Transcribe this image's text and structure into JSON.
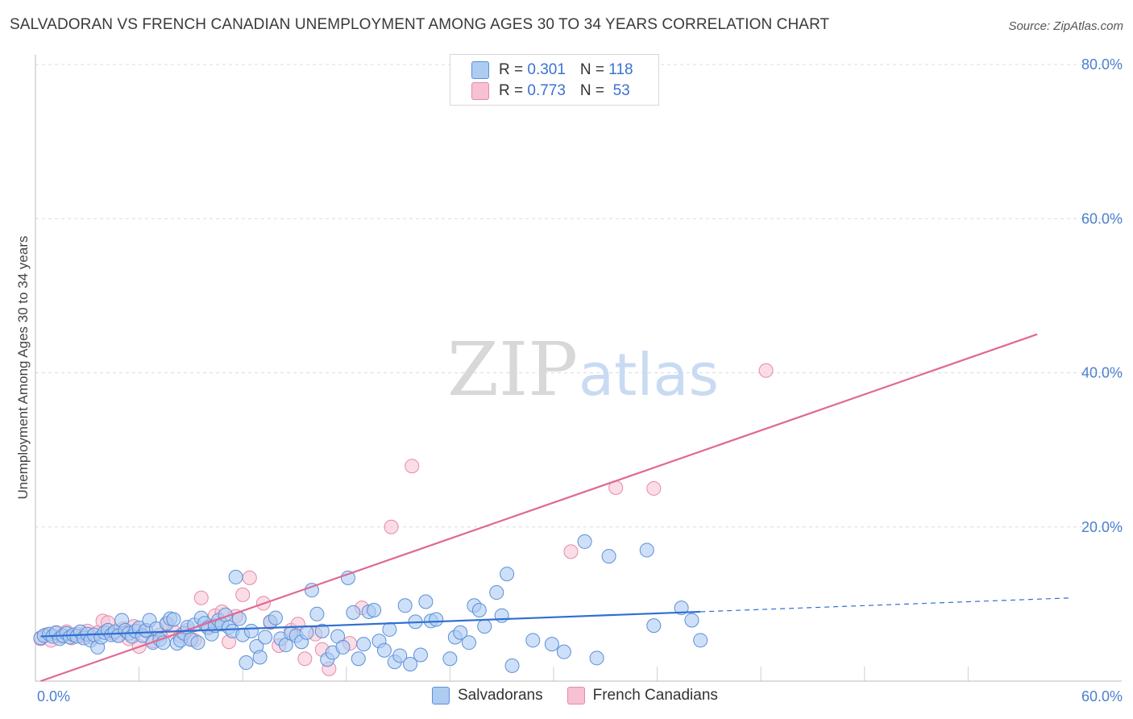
{
  "title": "SALVADORAN VS FRENCH CANADIAN UNEMPLOYMENT AMONG AGES 30 TO 34 YEARS CORRELATION CHART",
  "source": "Source: ZipAtlas.com",
  "watermark": {
    "zip": "ZIP",
    "atlas": "atlas"
  },
  "legend": {
    "rows": [
      {
        "r_label": "R = ",
        "r_value": "0.301",
        "n_label": "N = ",
        "n_value": "118"
      },
      {
        "r_label": "R = ",
        "r_value": "0.773",
        "n_label": "N = ",
        "n_value": " 53"
      }
    ]
  },
  "bottom_legend": [
    "Salvadorans",
    "French Canadians"
  ],
  "colors": {
    "blue_fill": "#aecbf2",
    "blue_stroke": "#5b8fd9",
    "blue_line": "#2f6fd0",
    "pink_fill": "#f7c1d2",
    "pink_stroke": "#e58aa8",
    "pink_line": "#e06893",
    "tick_text": "#4a7fd0",
    "grid": "#dcdcdc"
  },
  "chart_data": {
    "type": "scatter",
    "xlabel": "",
    "ylabel": "Unemployment Among Ages 30 to 34 years",
    "xlim": [
      0,
      60
    ],
    "ylim": [
      0,
      80
    ],
    "x_tick_labels": [
      "0.0%",
      "60.0%"
    ],
    "y_ticks": [
      20,
      40,
      60,
      80
    ],
    "y_tick_labels": [
      "20.0%",
      "40.0%",
      "60.0%",
      "80.0%"
    ],
    "grid": true,
    "legend_position": "top-center",
    "series": [
      {
        "name": "Salvadorans",
        "trend": {
          "x": [
            0.3,
            38.5
          ],
          "y": [
            5.8,
            9.0
          ],
          "extrapolated_to": [
            60.0,
            10.8
          ]
        },
        "points": [
          [
            0.3,
            5.6
          ],
          [
            0.5,
            5.9
          ],
          [
            0.8,
            6.1
          ],
          [
            1.0,
            5.8
          ],
          [
            1.2,
            6.3
          ],
          [
            1.4,
            5.5
          ],
          [
            1.6,
            5.9
          ],
          [
            1.8,
            6.2
          ],
          [
            2.0,
            5.7
          ],
          [
            2.2,
            6.0
          ],
          [
            2.4,
            5.8
          ],
          [
            2.6,
            6.4
          ],
          [
            2.8,
            5.6
          ],
          [
            3.0,
            6.1
          ],
          [
            3.2,
            5.3
          ],
          [
            3.4,
            6.0
          ],
          [
            3.6,
            4.4
          ],
          [
            3.8,
            5.7
          ],
          [
            4.0,
            6.3
          ],
          [
            4.2,
            6.6
          ],
          [
            4.4,
            6.0
          ],
          [
            4.6,
            6.4
          ],
          [
            4.8,
            5.9
          ],
          [
            5.0,
            7.9
          ],
          [
            5.2,
            6.6
          ],
          [
            5.4,
            6.2
          ],
          [
            5.6,
            5.8
          ],
          [
            5.8,
            6.5
          ],
          [
            6.0,
            6.9
          ],
          [
            6.2,
            5.9
          ],
          [
            6.4,
            6.6
          ],
          [
            6.6,
            7.9
          ],
          [
            6.8,
            5.0
          ],
          [
            7.0,
            6.8
          ],
          [
            7.2,
            5.4
          ],
          [
            7.4,
            5.0
          ],
          [
            7.6,
            7.5
          ],
          [
            7.8,
            8.1
          ],
          [
            8.0,
            8.0
          ],
          [
            8.2,
            4.9
          ],
          [
            8.4,
            5.3
          ],
          [
            8.6,
            6.2
          ],
          [
            8.8,
            7.0
          ],
          [
            9.0,
            5.4
          ],
          [
            9.2,
            7.3
          ],
          [
            9.4,
            5.0
          ],
          [
            9.6,
            8.2
          ],
          [
            9.8,
            7.5
          ],
          [
            10.0,
            6.9
          ],
          [
            10.2,
            6.1
          ],
          [
            10.4,
            7.2
          ],
          [
            10.6,
            7.9
          ],
          [
            10.8,
            7.4
          ],
          [
            11.0,
            8.6
          ],
          [
            11.2,
            7.0
          ],
          [
            11.4,
            6.5
          ],
          [
            11.6,
            13.5
          ],
          [
            11.8,
            8.1
          ],
          [
            12.0,
            6.0
          ],
          [
            12.2,
            2.4
          ],
          [
            12.5,
            6.5
          ],
          [
            12.8,
            4.5
          ],
          [
            13.0,
            3.1
          ],
          [
            13.3,
            5.7
          ],
          [
            13.6,
            7.7
          ],
          [
            13.9,
            8.2
          ],
          [
            14.2,
            5.5
          ],
          [
            14.5,
            4.7
          ],
          [
            14.8,
            6.2
          ],
          [
            15.1,
            5.9
          ],
          [
            15.4,
            5.1
          ],
          [
            15.7,
            6.3
          ],
          [
            16.0,
            11.8
          ],
          [
            16.3,
            8.7
          ],
          [
            16.6,
            6.5
          ],
          [
            16.9,
            2.8
          ],
          [
            17.2,
            3.7
          ],
          [
            17.5,
            5.8
          ],
          [
            17.8,
            4.4
          ],
          [
            18.1,
            13.4
          ],
          [
            18.4,
            8.9
          ],
          [
            18.7,
            2.9
          ],
          [
            19.0,
            4.8
          ],
          [
            19.3,
            9.0
          ],
          [
            19.6,
            9.2
          ],
          [
            19.9,
            5.2
          ],
          [
            20.2,
            4.0
          ],
          [
            20.5,
            6.7
          ],
          [
            20.8,
            2.5
          ],
          [
            21.1,
            3.3
          ],
          [
            21.4,
            9.8
          ],
          [
            21.7,
            2.2
          ],
          [
            22.0,
            7.7
          ],
          [
            22.3,
            3.4
          ],
          [
            22.6,
            10.3
          ],
          [
            22.9,
            7.8
          ],
          [
            23.2,
            8.0
          ],
          [
            24.0,
            2.9
          ],
          [
            24.3,
            5.7
          ],
          [
            24.6,
            6.3
          ],
          [
            25.1,
            5.0
          ],
          [
            25.4,
            9.8
          ],
          [
            25.7,
            9.2
          ],
          [
            26.0,
            7.1
          ],
          [
            26.7,
            11.5
          ],
          [
            27.0,
            8.5
          ],
          [
            27.3,
            13.9
          ],
          [
            27.6,
            2.0
          ],
          [
            28.8,
            5.3
          ],
          [
            29.9,
            4.8
          ],
          [
            30.6,
            3.8
          ],
          [
            31.8,
            18.1
          ],
          [
            32.5,
            3.0
          ],
          [
            33.2,
            16.2
          ],
          [
            35.4,
            17.0
          ],
          [
            35.8,
            7.2
          ],
          [
            37.4,
            9.5
          ],
          [
            38.0,
            7.9
          ],
          [
            38.5,
            5.3
          ]
        ]
      },
      {
        "name": "French Canadians",
        "trend": {
          "x": [
            0.3,
            58.0
          ],
          "y": [
            0.0,
            45.0
          ]
        },
        "points": [
          [
            0.3,
            5.5
          ],
          [
            0.6,
            6.0
          ],
          [
            0.9,
            5.3
          ],
          [
            1.2,
            6.2
          ],
          [
            1.5,
            5.8
          ],
          [
            1.8,
            6.4
          ],
          [
            2.1,
            5.6
          ],
          [
            2.4,
            6.1
          ],
          [
            2.7,
            5.9
          ],
          [
            3.0,
            6.5
          ],
          [
            3.3,
            5.7
          ],
          [
            3.6,
            6.3
          ],
          [
            3.9,
            7.8
          ],
          [
            4.2,
            7.6
          ],
          [
            4.5,
            6.2
          ],
          [
            4.8,
            5.9
          ],
          [
            5.1,
            6.8
          ],
          [
            5.4,
            5.5
          ],
          [
            5.7,
            7.1
          ],
          [
            6.0,
            4.5
          ],
          [
            6.4,
            6.5
          ],
          [
            6.8,
            5.2
          ],
          [
            7.2,
            6.0
          ],
          [
            7.6,
            7.4
          ],
          [
            8.0,
            6.4
          ],
          [
            8.4,
            5.9
          ],
          [
            8.8,
            6.6
          ],
          [
            9.2,
            5.3
          ],
          [
            9.6,
            10.8
          ],
          [
            10.0,
            7.1
          ],
          [
            10.4,
            8.5
          ],
          [
            10.8,
            9.0
          ],
          [
            11.2,
            5.1
          ],
          [
            11.6,
            8.4
          ],
          [
            12.0,
            11.2
          ],
          [
            12.4,
            13.4
          ],
          [
            13.2,
            10.1
          ],
          [
            13.6,
            7.6
          ],
          [
            14.1,
            4.6
          ],
          [
            14.8,
            6.6
          ],
          [
            15.2,
            7.4
          ],
          [
            15.6,
            2.9
          ],
          [
            16.2,
            6.1
          ],
          [
            16.6,
            4.1
          ],
          [
            17.0,
            1.6
          ],
          [
            18.2,
            4.9
          ],
          [
            18.9,
            9.5
          ],
          [
            20.6,
            20.0
          ],
          [
            21.8,
            27.9
          ],
          [
            31.0,
            16.8
          ],
          [
            33.6,
            25.1
          ],
          [
            35.8,
            25.0
          ],
          [
            42.3,
            40.3
          ]
        ]
      }
    ]
  }
}
